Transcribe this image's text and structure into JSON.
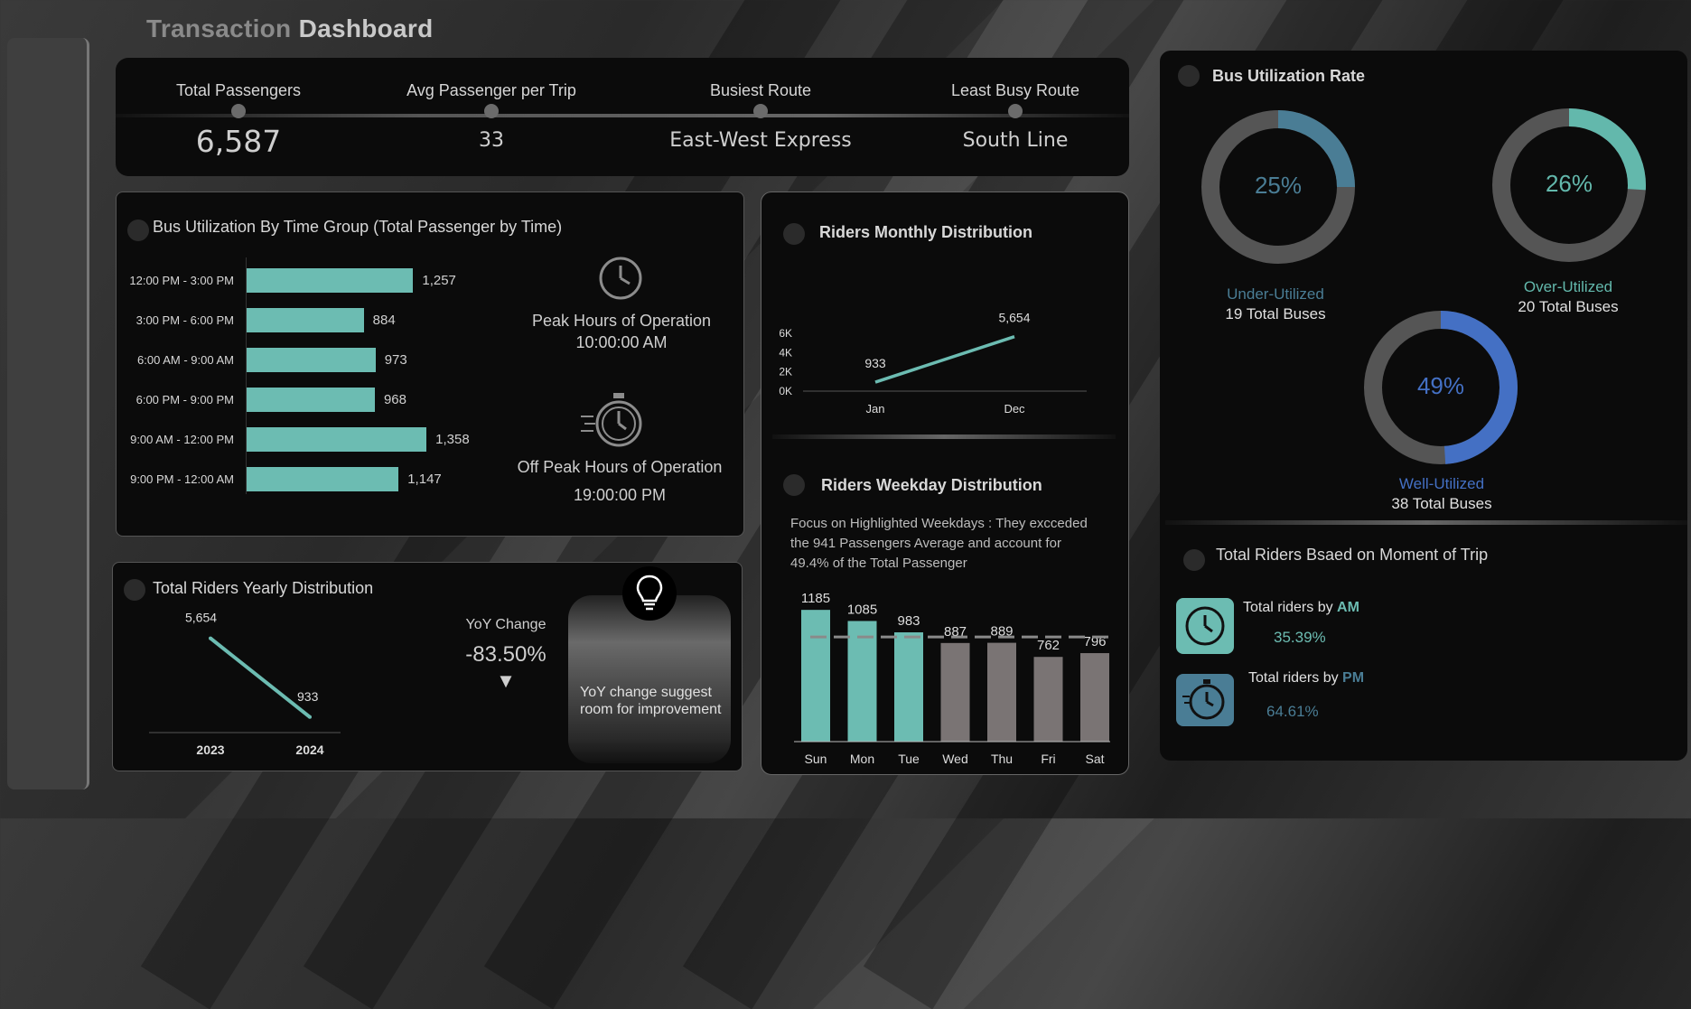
{
  "header": {
    "title_part1": "Transaction",
    "title_part2": "Dashboard"
  },
  "kpis": [
    {
      "label": "Total Passengers",
      "value": "6,587"
    },
    {
      "label": "Avg Passenger per Trip",
      "value": "33"
    },
    {
      "label": "Busiest Route",
      "value": "East-West Express"
    },
    {
      "label": "Least Busy Route",
      "value": "South Line"
    }
  ],
  "time_group": {
    "title": "Bus Utilization By Time Group (Total Passenger by Time)",
    "peak_label": "Peak Hours of Operation",
    "peak_value": "10:00:00 AM",
    "offpeak_label": "Off Peak Hours of Operation",
    "offpeak_value": "19:00:00 PM"
  },
  "yearly": {
    "title": "Total Riders Yearly Distribution",
    "yoy_label": "YoY Change",
    "yoy_value": "-83.50%",
    "insight": "YoY change suggest room for improvement"
  },
  "monthly": {
    "title": "Riders Monthly  Distribution"
  },
  "weekday": {
    "title": "Riders Weekday Distribution",
    "note": "Focus on Highlighted Weekdays : They excceded  the 941 Passengers Average and account for 49.4% of the Total Passenger"
  },
  "utilization": {
    "title": "Bus Utilization Rate",
    "donuts": [
      {
        "pct": "25%",
        "value": 25,
        "label": "Under-Utilized",
        "sub": "19 Total Buses",
        "color": "#4a7d95"
      },
      {
        "pct": "26%",
        "value": 26,
        "label": "Over-Utilized",
        "sub": "20 Total Buses",
        "color": "#63b8ac"
      },
      {
        "pct": "49%",
        "value": 49,
        "label": "Well-Utilized",
        "sub": "38 Total Buses",
        "color": "#4470c4"
      }
    ]
  },
  "moment": {
    "title": "Total Riders  Bsaed on Moment of Trip",
    "am_prefix": "Total riders by ",
    "am_tag": "AM",
    "am_value": "35.39%",
    "pm_prefix": "Total riders by ",
    "pm_tag": "PM",
    "pm_value": "64.61%"
  },
  "colors": {
    "teal": "#6cbcb2",
    "grey_bar": "#7a7474",
    "blue": "#4470c4",
    "steel": "#4a7d95"
  },
  "chart_data": [
    {
      "type": "bar",
      "orientation": "horizontal",
      "categories": [
        "12:00 PM - 3:00 PM",
        "3:00 PM - 6:00 PM",
        "6:00 AM - 9:00 AM",
        "6:00 PM - 9:00 PM",
        "9:00 AM - 12:00 PM",
        "9:00 PM - 12:00 AM"
      ],
      "values": [
        1257,
        884,
        973,
        968,
        1358,
        1147
      ],
      "value_labels": [
        "1,257",
        "884",
        "973",
        "968",
        "1,358",
        "1,147"
      ],
      "xlim": [
        0,
        1500
      ]
    },
    {
      "type": "line",
      "x": [
        "2023",
        "2024"
      ],
      "values": [
        5654,
        933
      ],
      "value_labels": [
        "5,654",
        "933"
      ],
      "ylim": [
        0,
        6500
      ]
    },
    {
      "type": "line",
      "x": [
        "Jan",
        "Dec"
      ],
      "values": [
        933,
        5654
      ],
      "value_labels": [
        "933",
        "5,654"
      ],
      "ylim": [
        0,
        6000
      ],
      "yticks": [
        "0K",
        "2K",
        "4K",
        "6K"
      ]
    },
    {
      "type": "bar",
      "categories": [
        "Sun",
        "Mon",
        "Tue",
        "Wed",
        "Thu",
        "Fri",
        "Sat"
      ],
      "values": [
        1185,
        1085,
        983,
        887,
        889,
        762,
        796
      ],
      "highlighted": [
        true,
        true,
        true,
        false,
        false,
        false,
        false
      ],
      "average": 941,
      "ylim": [
        0,
        1300
      ]
    }
  ]
}
